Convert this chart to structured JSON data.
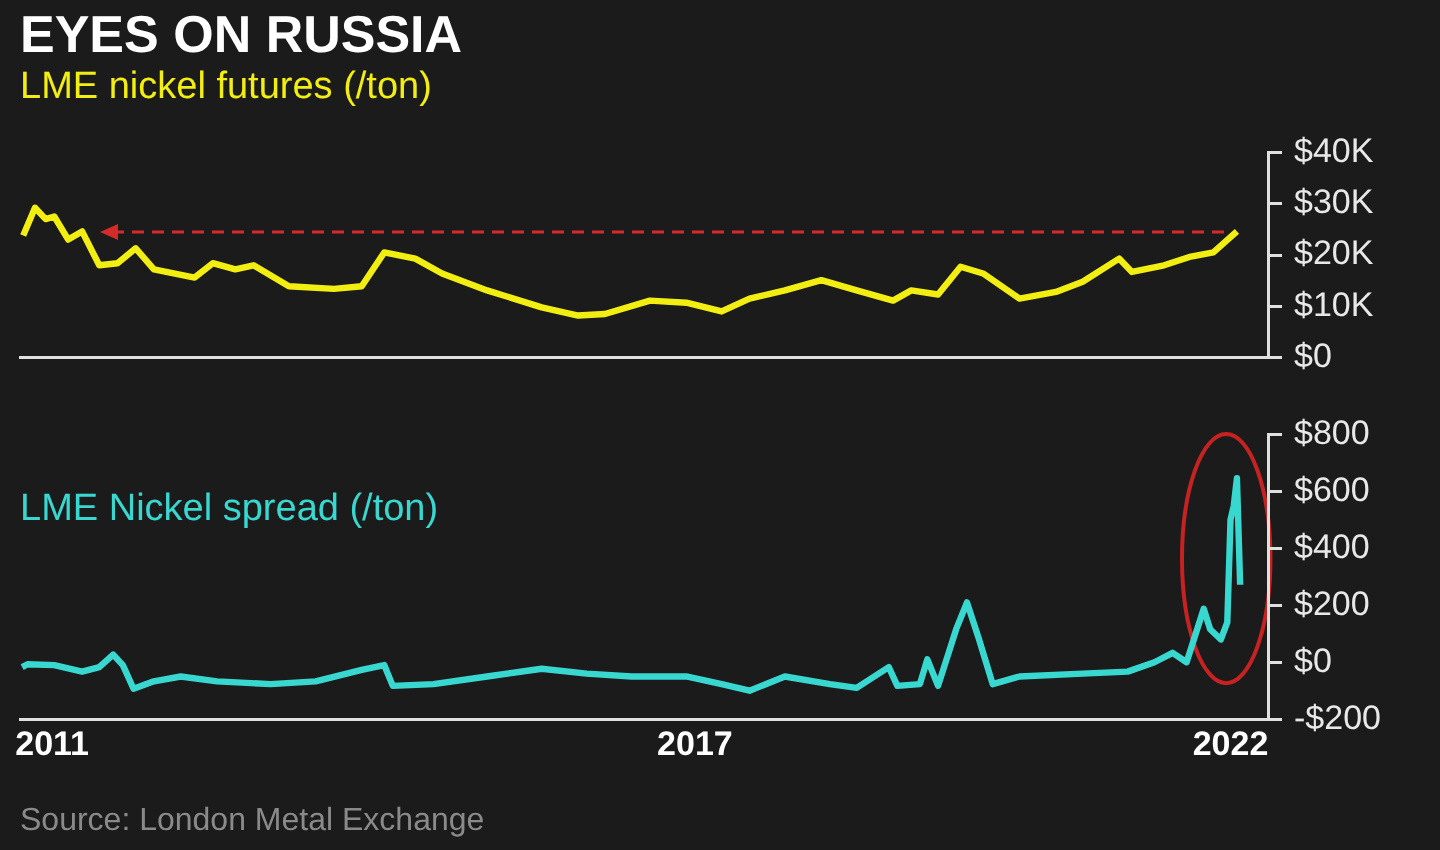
{
  "chart_data": [
    {
      "type": "line",
      "title": "EYES ON RUSSIA",
      "series": [
        {
          "name": "LME nickel futures (/ton)",
          "color": "#f2ee12",
          "x": [
            2010.73,
            2010.84,
            2010.94,
            2011.02,
            2011.15,
            2011.28,
            2011.44,
            2011.61,
            2011.78,
            2011.95,
            2012.33,
            2012.5,
            2012.71,
            2012.88,
            2013.21,
            2013.63,
            2013.89,
            2014.1,
            2014.39,
            2014.64,
            2015.06,
            2015.57,
            2015.91,
            2016.16,
            2016.58,
            2016.92,
            2017.25,
            2017.51,
            2017.84,
            2018.18,
            2018.51,
            2018.85,
            2019.02,
            2019.27,
            2019.48,
            2019.69,
            2020.03,
            2020.37,
            2020.62,
            2020.96,
            2021.08,
            2021.38,
            2021.63,
            2021.84,
            2022.06
          ],
          "values": [
            23800,
            29200,
            27000,
            27500,
            23000,
            24600,
            18000,
            18400,
            21300,
            17200,
            15600,
            18400,
            17200,
            18000,
            13900,
            13400,
            13900,
            20500,
            19300,
            16400,
            13100,
            9800,
            8200,
            8500,
            11100,
            10700,
            9000,
            11500,
            13100,
            15100,
            13100,
            11100,
            13100,
            12300,
            17700,
            16400,
            11500,
            12800,
            14800,
            19300,
            16700,
            18000,
            19700,
            20500,
            24600
          ]
        }
      ],
      "xlim": [
        2010.7,
        2022.35
      ],
      "ylim": [
        0,
        40000
      ],
      "yticks": [
        {
          "value": 0,
          "label": "$0"
        },
        {
          "value": 10000,
          "label": "$10K"
        },
        {
          "value": 20000,
          "label": "$20K"
        },
        {
          "value": 30000,
          "label": "$30K"
        },
        {
          "value": 40000,
          "label": "$40K"
        }
      ],
      "ref_lines": [
        {
          "axis": "y",
          "value": 24600,
          "color": "#d42a2a",
          "line_style": "dashed"
        }
      ],
      "tick_labels": "y",
      "grid": false,
      "legend": false,
      "marker": "none"
    },
    {
      "type": "line",
      "series": [
        {
          "name": "LME Nickel spread (/ton)",
          "color": "#38d8d0",
          "x": [
            2010.72,
            2010.77,
            2011.02,
            2011.28,
            2011.44,
            2011.57,
            2011.66,
            2011.76,
            2011.95,
            2012.2,
            2012.54,
            2013.04,
            2013.46,
            2013.89,
            2014.1,
            2014.18,
            2014.56,
            2015.06,
            2015.57,
            2015.99,
            2016.41,
            2016.92,
            2017.25,
            2017.51,
            2017.84,
            2018.26,
            2018.51,
            2018.81,
            2018.89,
            2019.1,
            2019.17,
            2019.27,
            2019.44,
            2019.54,
            2019.65,
            2019.78,
            2020.03,
            2020.62,
            2021.04,
            2021.29,
            2021.46,
            2021.59,
            2021.75,
            2021.81,
            2021.91,
            2021.97,
            2022.0,
            2022.03,
            2022.06,
            2022.09
          ],
          "values": [
            -17,
            -7,
            -10,
            -33,
            -17,
            27,
            -10,
            -93,
            -67,
            -50,
            -67,
            -77,
            -67,
            -27,
            -10,
            -83,
            -77,
            -50,
            -23,
            -40,
            -50,
            -50,
            -77,
            -100,
            -50,
            -77,
            -90,
            -17,
            -83,
            -77,
            10,
            -83,
            117,
            210,
            83,
            -77,
            -50,
            -40,
            -33,
            0,
            33,
            0,
            188,
            116,
            80,
            140,
            500,
            549,
            646,
            272
          ]
        }
      ],
      "xlim": [
        2010.7,
        2022.35
      ],
      "xticks": [
        2011,
        2017,
        2022
      ],
      "ylim": [
        -200,
        800
      ],
      "yticks": [
        {
          "value": -200,
          "label": "-$200"
        },
        {
          "value": 0,
          "label": "$0"
        },
        {
          "value": 200,
          "label": "$200"
        },
        {
          "value": 400,
          "label": "$400"
        },
        {
          "value": 600,
          "label": "$600"
        },
        {
          "value": 800,
          "label": "$800"
        }
      ],
      "annotations": [
        "Source: London Metal Exchange"
      ],
      "grid": false,
      "legend": false,
      "marker": "none"
    }
  ]
}
